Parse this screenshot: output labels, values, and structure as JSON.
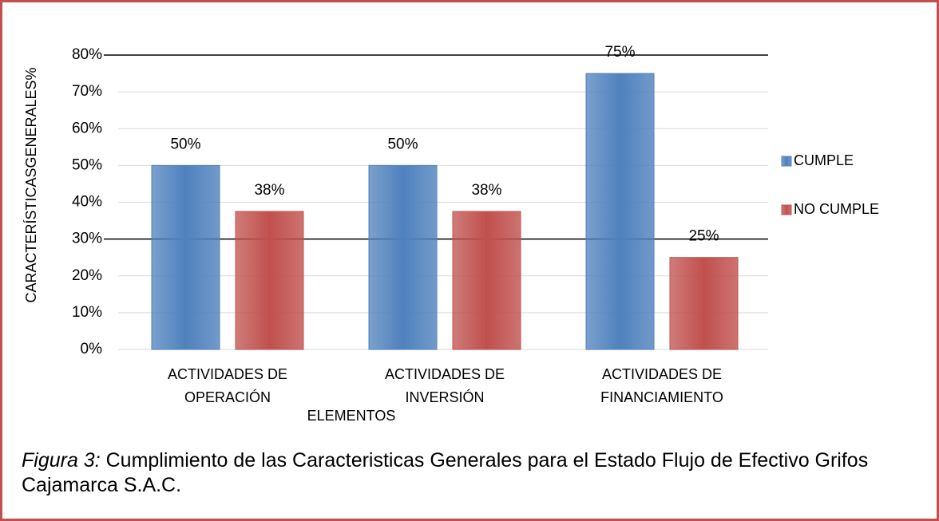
{
  "chart_data": {
    "type": "bar",
    "caption_label": "Figura 3:",
    "caption": "Cumplimiento de las Caracteristicas Generales para el Estado Flujo de Efectivo Grifos Cajamarca S.A.C.",
    "y_label": "CARACTERÍSTICASGENERALES%",
    "x_label": "ELEMENTOS",
    "categories": [
      "ACTIVIDADES DE\nOPERACIÓN",
      "ACTIVIDADES DE\nINVERSIÓN",
      "ACTIVIDADES DE\nFINANCIAMIENTO"
    ],
    "series": [
      {
        "name": "CUMPLE",
        "color": "#4f81bd",
        "values": [
          50,
          50,
          75
        ],
        "value_labels": [
          "50%",
          "50%",
          "75%"
        ]
      },
      {
        "name": "NO CUMPLE",
        "color": "#c0504d",
        "values": [
          37.5,
          37.5,
          25
        ],
        "value_labels": [
          "38%",
          "38%",
          "25%"
        ]
      }
    ],
    "ylim": [
      0,
      80
    ],
    "yticks": [
      {
        "value": 0,
        "label": "0%"
      },
      {
        "value": 10,
        "label": "10%"
      },
      {
        "value": 20,
        "label": "20%"
      },
      {
        "value": 30,
        "label": "30%"
      },
      {
        "value": 40,
        "label": "40%"
      },
      {
        "value": 50,
        "label": "50%"
      },
      {
        "value": 60,
        "label": "60%"
      },
      {
        "value": 70,
        "label": "70%"
      },
      {
        "value": 80,
        "label": "80%"
      }
    ],
    "grid": true,
    "dark_gridlines": [
      30,
      80
    ],
    "legend": "right"
  }
}
